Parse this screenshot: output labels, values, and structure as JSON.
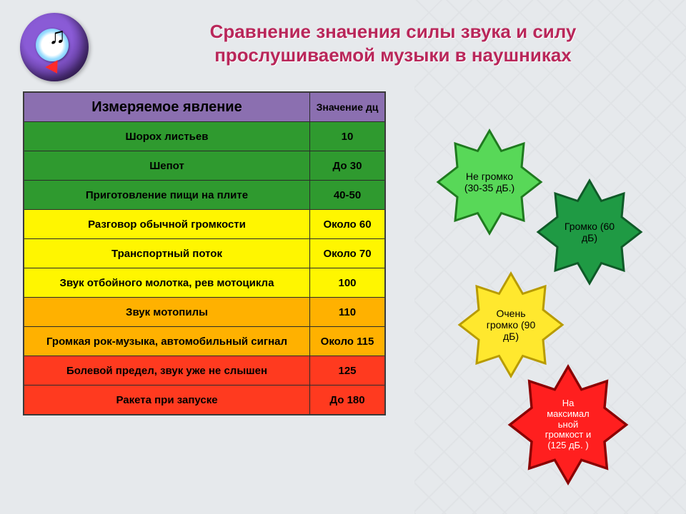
{
  "title": "Сравнение значения силы звука и силу прослушиваемой музыки в наушниках",
  "table": {
    "header_bg": "#8b6fb0",
    "col_label": "Измеряемое явление",
    "col_value": "Значение дц",
    "rows": [
      {
        "label": "Шорох листьев",
        "value": "10",
        "bg": "#2f9a2f"
      },
      {
        "label": "Шепот",
        "value": "До 30",
        "bg": "#2f9a2f"
      },
      {
        "label": "Приготовление пищи на плите",
        "value": "40-50",
        "bg": "#2f9a2f"
      },
      {
        "label": "Разговор обычной громкости",
        "value": "Около 60",
        "bg": "#fff600"
      },
      {
        "label": "Транспортный поток",
        "value": "Около 70",
        "bg": "#fff600"
      },
      {
        "label": "Звук отбойного молотка, рев мотоцикла",
        "value": "100",
        "bg": "#fff600"
      },
      {
        "label": "Звук мотопилы",
        "value": "110",
        "bg": "#ffb100"
      },
      {
        "label": "Громкая рок-музыка, автомобильный сигнал",
        "value": "Около 115",
        "bg": "#ffb100"
      },
      {
        "label": "Болевой предел, звук уже не слышен",
        "value": "125",
        "bg": "#ff3a1f"
      },
      {
        "label": "Ракета при запуске",
        "value": "До 180",
        "bg": "#ff3a1f"
      }
    ]
  },
  "badges": {
    "s1": {
      "text": "Не громко (30-35 дБ.)",
      "fill": "#58d858",
      "stroke": "#1f7a1f"
    },
    "s2": {
      "text": "Громко (60 дБ)",
      "fill": "#1f9a44",
      "stroke": "#0f5a28"
    },
    "s3": {
      "text": "Очень громко (90 дБ)",
      "fill": "#ffe82e",
      "stroke": "#b89b00"
    },
    "s4": {
      "text": "На максимал ьной громкост и (125 дБ. )",
      "fill": "#ff1f1f",
      "stroke": "#8a0000"
    }
  },
  "colors": {
    "page_bg": "#e6e9ec",
    "title_color": "#b9275a"
  }
}
